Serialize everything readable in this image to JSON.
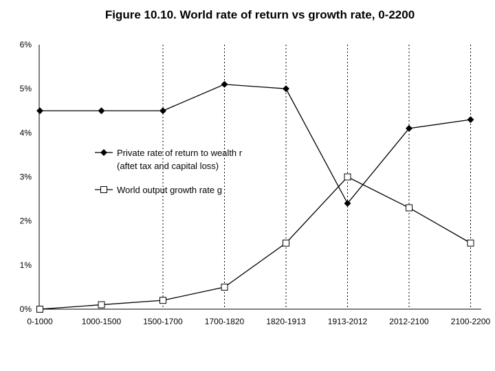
{
  "chart_data": {
    "type": "line",
    "title": "Figure 10.10. World rate of return vs growth rate, 0-2200",
    "categories": [
      "0-1000",
      "1000-1500",
      "1500-1700",
      "1700-1820",
      "1820-1913",
      "1913-2012",
      "2012-2100",
      "2100-2200"
    ],
    "y_ticks": [
      "0%",
      "1%",
      "2%",
      "3%",
      "4%",
      "5%",
      "6%"
    ],
    "ylim": [
      0,
      6
    ],
    "y_unit": "%",
    "xlabel": "",
    "ylabel": "",
    "grid": "dotted vertical lines at 1500-1700 through 2100-2200",
    "legend_position": "center-left",
    "series": [
      {
        "name": "Private rate of return to wealth r",
        "name_line2": "(aftet tax and capital loss)",
        "marker": "filled-diamond",
        "values": [
          4.5,
          4.5,
          4.5,
          5.1,
          5.0,
          2.4,
          4.1,
          4.3
        ]
      },
      {
        "name": "World output growth rate g",
        "marker": "open-square",
        "values": [
          0.0,
          0.1,
          0.2,
          0.5,
          1.5,
          3.0,
          2.3,
          1.5
        ]
      }
    ]
  }
}
